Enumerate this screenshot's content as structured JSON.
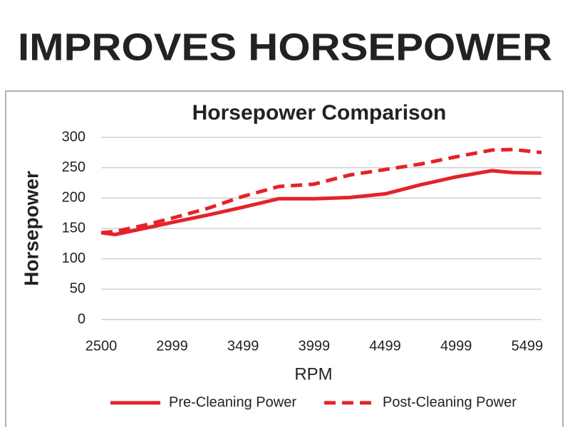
{
  "heading": "IMPROVES HORSEPOWER",
  "chart_data": {
    "type": "line",
    "title": "Horsepower Comparison",
    "x_label": "RPM",
    "y_label": "Horsepower",
    "x": [
      2500,
      2600,
      2800,
      3000,
      3250,
      3500,
      3750,
      4000,
      4250,
      4500,
      4750,
      5000,
      5250,
      5400,
      5600
    ],
    "series": [
      {
        "name": "Pre-Cleaning Power",
        "color": "#e3232a",
        "line_style": "solid",
        "values": [
          143,
          140,
          150,
          160,
          172,
          185,
          199,
          199,
          201,
          207,
          222,
          235,
          245,
          242,
          241
        ]
      },
      {
        "name": "Post-Cleaning Power",
        "color": "#e3232a",
        "line_style": "dashed",
        "values": [
          143,
          145,
          155,
          167,
          183,
          203,
          219,
          223,
          238,
          247,
          256,
          268,
          279,
          280,
          275
        ]
      }
    ],
    "xlim": [
      2500,
      5600
    ],
    "xticks": [
      2500,
      2999,
      3499,
      3999,
      4499,
      4999,
      5499
    ],
    "ylim": [
      0,
      300
    ],
    "yticks": [
      0,
      50,
      100,
      150,
      200,
      250,
      300
    ],
    "grid": true,
    "legend": "bottom"
  }
}
